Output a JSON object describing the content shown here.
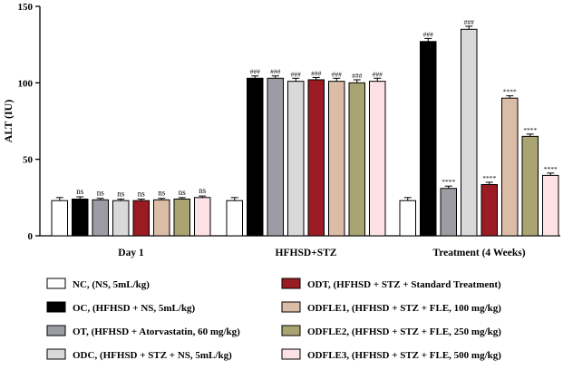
{
  "chart_data": {
    "type": "bar",
    "title": "",
    "xlabel": "",
    "ylabel": "ALT (IU)",
    "ylim": [
      0,
      150
    ],
    "yticks": [
      0,
      50,
      100,
      150
    ],
    "grid": false,
    "legend_position": "bottom",
    "categories": [
      "Day 1",
      "HFHSD+STZ",
      "Treatment (4 Weeks)"
    ],
    "series": [
      {
        "name": "NC,  (NS, 5mL/kg)",
        "color": "#ffffff",
        "values": [
          23,
          23,
          23
        ],
        "errors": [
          2,
          2,
          2
        ],
        "annotations": [
          "",
          "",
          ""
        ]
      },
      {
        "name": "OC, (HFHSD + NS, 5mL/kg)",
        "color": "#000000",
        "values": [
          24,
          103,
          127
        ],
        "errors": [
          1.5,
          1.5,
          2
        ],
        "annotations": [
          "ns",
          "###",
          "###"
        ]
      },
      {
        "name": "OT, (HFHSD + Atorvastatin, 60 mg/kg)",
        "color": "#9c9ca4",
        "values": [
          23.5,
          103,
          31
        ],
        "errors": [
          1,
          1.5,
          1.5
        ],
        "annotations": [
          "ns",
          "###",
          "****"
        ]
      },
      {
        "name": "ODC, (HFHSD + STZ + NS, 5mL/kg)",
        "color": "#d9d9d9",
        "values": [
          23,
          101,
          135
        ],
        "errors": [
          1,
          2,
          2
        ],
        "annotations": [
          "ns",
          "###",
          "###"
        ]
      },
      {
        "name": "ODT, (HFHSD + STZ + Standard Treatment)",
        "color": "#9b1b22",
        "values": [
          23,
          102,
          33.5
        ],
        "errors": [
          1,
          1.5,
          1.5
        ],
        "annotations": [
          "ns",
          "###",
          "****"
        ]
      },
      {
        "name": "ODFLE1, (HFHSD + STZ + FLE, 100 mg/kg)",
        "color": "#dbbca6",
        "values": [
          23.5,
          101,
          90
        ],
        "errors": [
          1,
          2,
          1.5
        ],
        "annotations": [
          "ns",
          "###",
          "****"
        ]
      },
      {
        "name": "ODFLE2, (HFHSD + STZ + FLE, 250 mg/kg)",
        "color": "#aaa472",
        "values": [
          24,
          100,
          65
        ],
        "errors": [
          1,
          2,
          1.5
        ],
        "annotations": [
          "ns",
          "###",
          "****"
        ]
      },
      {
        "name": "ODFLE3, (HFHSD + STZ + FLE, 500 mg/kg)",
        "color": "#fde1e4",
        "values": [
          25,
          101,
          39.5
        ],
        "errors": [
          1,
          2,
          1.5
        ],
        "annotations": [
          "ns",
          "###",
          "****"
        ]
      }
    ]
  }
}
